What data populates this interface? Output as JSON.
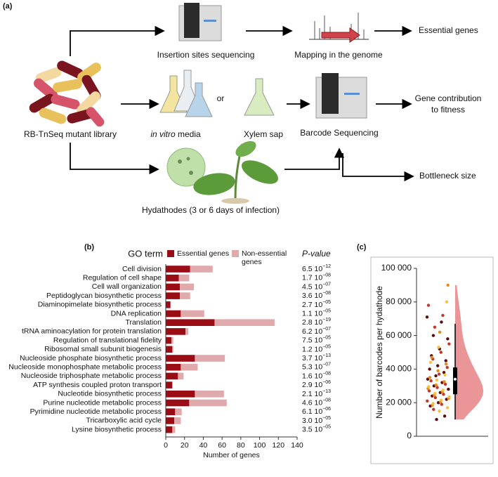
{
  "panel_a": {
    "label": "(a)",
    "insertion": "Insertion sites sequencing",
    "mapping": "Mapping in the genome",
    "essential": "Essential genes",
    "library": "RB-TnSeq mutant library",
    "in_vitro": [
      "in vitro",
      " media"
    ],
    "or": "or",
    "xylem": "Xylem sap",
    "barcode": "Barcode Sequencing",
    "fitness": [
      "Gene contribution",
      "to fitness"
    ],
    "bottleneck": "Bottleneck size",
    "hydathodes": "Hydathodes (3 or 6 days of infection)"
  },
  "chart_data": [
    {
      "type": "bar",
      "stacked": true,
      "panel_label": "(b)",
      "category_header": "GO term",
      "p_header": "P-value",
      "x_label": "Number of genes",
      "xlim": [
        0,
        140
      ],
      "xticks": [
        0,
        20,
        40,
        60,
        80,
        100,
        120,
        140
      ],
      "categories": [
        "Cell division",
        "Regulation of cell shape",
        "Cell wall organization",
        "Peptidoglycan biosynthetic process",
        "Diaminopimelate biosynthetic process",
        "DNA replication",
        "Translation",
        "tRNA aminoacylation for protein translation",
        "Regulation of translational fidelity",
        "Ribosomal small subunit biogenesis",
        "Nucleoside phosphate biosynthetic process",
        "Nucleoside monophosphate metabolic process",
        "Nucleoside triphosphate metabolic process",
        "ATP synthesis coupled proton transport",
        "Nucleotide biosynthetic process",
        "Purine nucleotide metabolic process",
        "Pyrimidine nucleotide metabolic process",
        "Tricarboxylic acid cycle",
        "Lysine biosynthetic process"
      ],
      "series": [
        {
          "name": "Essential genes",
          "color": "#9b0d14",
          "values": [
            26,
            14,
            15,
            15,
            5,
            16,
            52,
            21,
            6,
            7,
            31,
            16,
            13,
            7,
            31,
            25,
            10,
            9,
            7
          ]
        },
        {
          "name": [
            "Non-essential",
            "genes"
          ],
          "color": "#e0aaac",
          "values": [
            24,
            11,
            15,
            11,
            0,
            25,
            64,
            3,
            2,
            1,
            32,
            18,
            6,
            0,
            31,
            40,
            7,
            7,
            3
          ]
        }
      ],
      "p_values": [
        [
          "6.5 10",
          "−12"
        ],
        [
          "1.7 10",
          "−08"
        ],
        [
          "4.5 10",
          "−07"
        ],
        [
          "3.6 10",
          "−08"
        ],
        [
          "2.7 10",
          "−05"
        ],
        [
          "1.1 10",
          "−05"
        ],
        [
          "2.8 10",
          "−19"
        ],
        [
          "6.2 10",
          "−07"
        ],
        [
          "7.5 10",
          "−05"
        ],
        [
          "1.2 10",
          "−05"
        ],
        [
          "3.7 10",
          "−13"
        ],
        [
          "5.3 10",
          "−07"
        ],
        [
          "1.6 10",
          "−08"
        ],
        [
          "2.9 10",
          "−06"
        ],
        [
          "2.1 10",
          "−13"
        ],
        [
          "4.6 10",
          "−08"
        ],
        [
          "6.1 10",
          "−06"
        ],
        [
          "3.0 10",
          "−05"
        ],
        [
          "3.5 10",
          "−05"
        ]
      ]
    },
    {
      "type": "raincloud",
      "panel_label": "(c)",
      "y_label": "Number of barcodes per hydathode",
      "ylim": [
        0,
        100000
      ],
      "yticks": [
        0,
        {
          "value": 20000,
          "label": "20 000"
        },
        {
          "value": 40000,
          "label": "40 000"
        },
        {
          "value": 60000,
          "label": "60 000"
        },
        {
          "value": 80000,
          "label": "80 000"
        },
        {
          "value": 100000,
          "label": "100 000"
        }
      ],
      "violin_color": "#e8898c",
      "box": {
        "whisker_low": 10000,
        "q1": 25000,
        "median": 34000,
        "q3": 41000,
        "whisker_high": 67000
      },
      "series": [
        {
          "color": "#5c0a0a",
          "values": [
            71000,
            68000,
            60000,
            58000,
            52000,
            48000,
            45000,
            42000,
            40000,
            38000,
            36000,
            34000,
            32000,
            30000,
            28000,
            26000,
            24000,
            22000,
            20000,
            18000,
            12000,
            10000
          ]
        },
        {
          "color": "#c0392b",
          "values": [
            78000,
            72000,
            65000,
            55000,
            50000,
            46000,
            41000,
            37000,
            33000,
            31000,
            29000,
            27000,
            25000,
            23000,
            21000,
            19000,
            16000
          ]
        },
        {
          "color": "#e8891a",
          "values": [
            90000,
            62000,
            47000,
            43000,
            39000,
            35000,
            32500,
            30500,
            28500,
            26500,
            24500,
            22500,
            20500,
            18500
          ]
        },
        {
          "color": "#f5c342",
          "values": [
            80000,
            53000,
            44000,
            36500,
            33500,
            29500,
            27500,
            25500,
            23500,
            21500,
            19500,
            17000,
            15000
          ]
        }
      ]
    }
  ]
}
